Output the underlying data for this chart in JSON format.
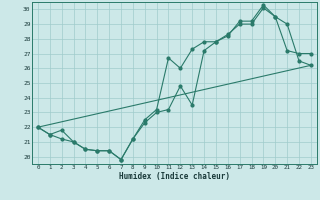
{
  "xlabel": "Humidex (Indice chaleur)",
  "xlim": [
    -0.5,
    23.5
  ],
  "ylim": [
    19.5,
    30.5
  ],
  "xticks": [
    0,
    1,
    2,
    3,
    4,
    5,
    6,
    7,
    8,
    9,
    10,
    11,
    12,
    13,
    14,
    15,
    16,
    17,
    18,
    19,
    20,
    21,
    22,
    23
  ],
  "yticks": [
    20,
    21,
    22,
    23,
    24,
    25,
    26,
    27,
    28,
    29,
    30
  ],
  "background_color": "#cce8e8",
  "line_color": "#2a7a6a",
  "grid_color": "#a0cccc",
  "line1_x": [
    0,
    1,
    2,
    3,
    4,
    5,
    6,
    7,
    8,
    9,
    10,
    11,
    12,
    13,
    14,
    15,
    16,
    17,
    18,
    19,
    20,
    21,
    22,
    23
  ],
  "line1_y": [
    22.0,
    21.5,
    21.2,
    21.0,
    20.5,
    20.4,
    20.4,
    19.8,
    21.2,
    22.3,
    23.0,
    23.2,
    24.8,
    23.5,
    27.2,
    27.8,
    28.3,
    29.0,
    29.0,
    30.1,
    29.5,
    29.0,
    26.5,
    26.2
  ],
  "line2_x": [
    0,
    1,
    2,
    3,
    4,
    5,
    6,
    7,
    8,
    9,
    10,
    11,
    12,
    13,
    14,
    15,
    16,
    17,
    18,
    19,
    20,
    21,
    22,
    23
  ],
  "line2_y": [
    22.0,
    21.5,
    21.8,
    21.0,
    20.5,
    20.4,
    20.4,
    19.8,
    21.2,
    22.5,
    23.2,
    26.7,
    26.0,
    27.3,
    27.8,
    27.8,
    28.2,
    29.2,
    29.2,
    30.3,
    29.5,
    27.2,
    27.0,
    27.0
  ],
  "line3_x": [
    0,
    23
  ],
  "line3_y": [
    22.0,
    26.2
  ]
}
